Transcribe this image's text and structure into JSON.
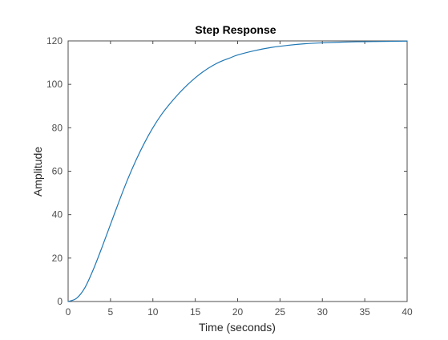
{
  "chart_data": {
    "type": "line",
    "title": "Step Response",
    "xlabel": "Time (seconds)",
    "ylabel": "Amplitude",
    "xlim": [
      0,
      40
    ],
    "ylim": [
      0,
      120
    ],
    "xticks": [
      0,
      5,
      10,
      15,
      20,
      25,
      30,
      35,
      40
    ],
    "yticks": [
      0,
      20,
      40,
      60,
      80,
      100,
      120
    ],
    "grid": false,
    "legend": "none",
    "colors": {
      "line": "#1f77b4",
      "axes": "#4d4d4d",
      "tick_label": "#4d4d4d",
      "title": "#000000",
      "label": "#262626"
    },
    "series": [
      {
        "x": [
          0,
          1,
          2,
          3,
          4,
          5,
          6,
          7,
          8,
          9,
          10,
          11,
          12,
          13,
          14,
          15,
          16,
          17,
          18,
          19,
          20,
          22,
          24,
          26,
          28,
          30,
          32,
          34,
          36,
          38,
          40
        ],
        "values": [
          0,
          1.5,
          6.5,
          15,
          25,
          35.5,
          46,
          56,
          65,
          73,
          80,
          86,
          91,
          95.5,
          99.5,
          103,
          106,
          108.5,
          110.5,
          112,
          113.5,
          115.5,
          117,
          118,
          118.7,
          119.1,
          119.4,
          119.6,
          119.7,
          119.8,
          119.9
        ]
      }
    ]
  }
}
